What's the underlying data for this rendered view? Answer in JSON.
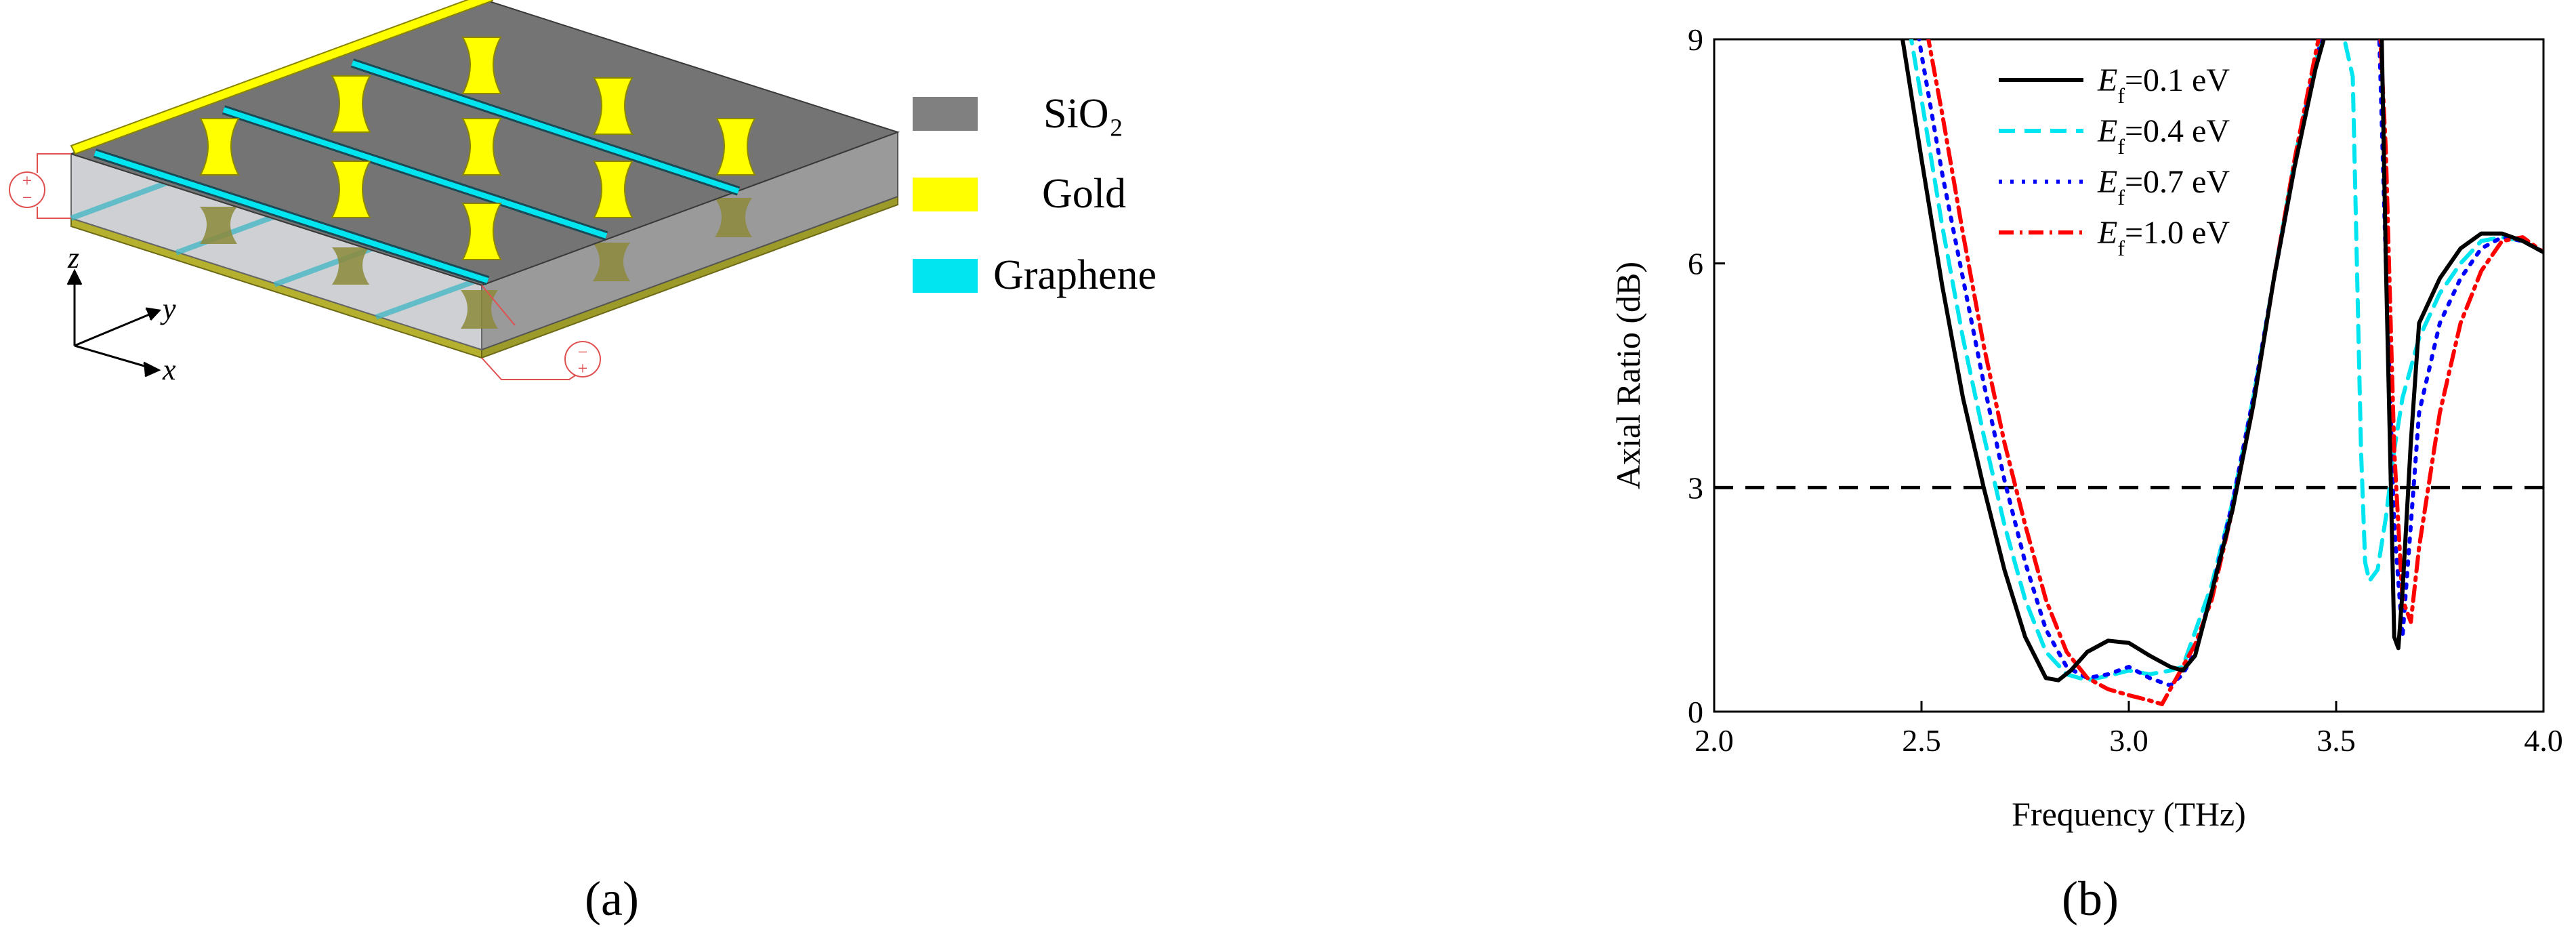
{
  "panel_a": {
    "caption": "(a)",
    "legend": [
      {
        "label": "SiO₂",
        "color": "#808080"
      },
      {
        "label": "Gold",
        "color": "#ffff00"
      },
      {
        "label": "Graphene",
        "color": "#00e5ef"
      }
    ],
    "axes": {
      "z": "z",
      "y": "y",
      "x": "x"
    },
    "source_marks": {
      "plus": "+",
      "minus": "−"
    }
  },
  "panel_b": {
    "caption": "(b)",
    "chart_data": {
      "type": "line",
      "xlabel": "Frequency (THz)",
      "ylabel": "Axial Ratio (dB)",
      "xlim": [
        2.0,
        4.0
      ],
      "ylim": [
        0,
        9
      ],
      "xticks": [
        "2.0",
        "2.5",
        "3.0",
        "3.5",
        "4.0"
      ],
      "yticks": [
        "0",
        "3",
        "6",
        "9"
      ],
      "grid": false,
      "legend_position": "top-right",
      "reference_line": {
        "y": 3,
        "style": "dashed",
        "color": "#000000"
      },
      "series": [
        {
          "name": "E_f=0.1 eV",
          "legend": {
            "sym": "E",
            "sub": "f",
            "rest": "=0.1 eV"
          },
          "color": "#000000",
          "dash": "",
          "x": [
            2.44,
            2.5,
            2.55,
            2.6,
            2.65,
            2.7,
            2.75,
            2.8,
            2.83,
            2.86,
            2.9,
            2.95,
            3.0,
            3.05,
            3.1,
            3.13,
            3.16,
            3.2,
            3.25,
            3.3,
            3.35,
            3.4,
            3.45,
            3.48,
            3.5,
            3.52,
            3.55,
            3.58,
            3.6,
            3.61,
            3.62,
            3.63,
            3.64,
            3.65,
            3.66,
            3.68,
            3.7,
            3.75,
            3.8,
            3.85,
            3.9,
            3.95,
            4.0
          ],
          "y": [
            9.5,
            7.4,
            5.7,
            4.2,
            3.0,
            1.9,
            1.0,
            0.45,
            0.42,
            0.55,
            0.8,
            0.95,
            0.92,
            0.75,
            0.6,
            0.55,
            0.75,
            1.6,
            2.7,
            4.1,
            5.8,
            7.3,
            8.6,
            9.2,
            9.6,
            9.8,
            9.8,
            9.8,
            9.8,
            9.0,
            6.0,
            3.5,
            1.0,
            0.85,
            1.6,
            3.6,
            5.2,
            5.8,
            6.2,
            6.4,
            6.4,
            6.3,
            6.15
          ]
        },
        {
          "name": "E_f=0.4 eV",
          "legend": {
            "sym": "E",
            "sub": "f",
            "rest": "=0.4 eV"
          },
          "color": "#00e5ef",
          "dash": "24,14",
          "x": [
            2.46,
            2.5,
            2.55,
            2.6,
            2.65,
            2.7,
            2.75,
            2.8,
            2.85,
            2.9,
            2.95,
            3.0,
            3.05,
            3.1,
            3.13,
            3.2,
            3.25,
            3.3,
            3.35,
            3.4,
            3.45,
            3.48,
            3.5,
            3.52,
            3.54,
            3.55,
            3.56,
            3.57,
            3.58,
            3.6,
            3.62,
            3.64,
            3.66,
            3.7,
            3.75,
            3.8,
            3.85,
            3.9,
            3.95,
            4.0
          ],
          "y": [
            9.5,
            8.2,
            6.5,
            5.0,
            3.7,
            2.5,
            1.5,
            0.8,
            0.5,
            0.42,
            0.48,
            0.55,
            0.5,
            0.55,
            0.6,
            1.7,
            2.8,
            4.2,
            5.8,
            7.4,
            8.7,
            9.3,
            9.3,
            9.0,
            8.5,
            6.0,
            3.5,
            2.0,
            1.75,
            1.9,
            2.6,
            3.5,
            4.2,
            5.0,
            5.6,
            6.0,
            6.3,
            6.35,
            6.3,
            6.15
          ]
        },
        {
          "name": "E_f=0.7 eV",
          "legend": {
            "sym": "E",
            "sub": "f",
            "rest": "=0.7 eV"
          },
          "color": "#0000ff",
          "dash": "5,12",
          "x": [
            2.48,
            2.5,
            2.55,
            2.6,
            2.65,
            2.7,
            2.75,
            2.8,
            2.85,
            2.9,
            2.95,
            3.0,
            3.05,
            3.1,
            3.13,
            3.16,
            3.2,
            3.25,
            3.3,
            3.35,
            3.4,
            3.45,
            3.48,
            3.5,
            3.52,
            3.56,
            3.6,
            3.62,
            3.64,
            3.66,
            3.68,
            3.7,
            3.75,
            3.8,
            3.85,
            3.9,
            3.95,
            4.0
          ],
          "y": [
            9.5,
            8.8,
            7.2,
            5.8,
            4.4,
            3.1,
            2.0,
            1.1,
            0.6,
            0.45,
            0.5,
            0.6,
            0.45,
            0.35,
            0.5,
            0.8,
            1.6,
            2.8,
            4.2,
            5.8,
            7.3,
            8.7,
            9.3,
            9.6,
            9.8,
            9.8,
            9.8,
            6.0,
            2.5,
            1.0,
            2.5,
            4.0,
            5.2,
            5.8,
            6.2,
            6.35,
            6.3,
            6.15
          ]
        },
        {
          "name": "E_f=1.0 eV",
          "legend": {
            "sym": "E",
            "sub": "f",
            "rest": "=1.0 eV"
          },
          "color": "#ff0000",
          "dash": "22,9,4,9",
          "x": [
            2.5,
            2.55,
            2.6,
            2.65,
            2.7,
            2.75,
            2.8,
            2.85,
            2.9,
            2.95,
            3.0,
            3.05,
            3.08,
            3.12,
            3.16,
            3.2,
            3.25,
            3.3,
            3.35,
            3.4,
            3.45,
            3.48,
            3.5,
            3.52,
            3.56,
            3.6,
            3.62,
            3.64,
            3.66,
            3.68,
            3.7,
            3.75,
            3.8,
            3.85,
            3.9,
            3.95,
            4.0
          ],
          "y": [
            9.5,
            8.0,
            6.4,
            4.9,
            3.6,
            2.5,
            1.5,
            0.8,
            0.45,
            0.3,
            0.22,
            0.15,
            0.1,
            0.5,
            0.9,
            1.5,
            2.7,
            4.1,
            5.8,
            7.4,
            8.8,
            9.6,
            9.8,
            9.8,
            9.8,
            9.8,
            7.5,
            3.5,
            1.5,
            1.2,
            2.2,
            4.0,
            5.2,
            5.9,
            6.3,
            6.35,
            6.15
          ]
        }
      ]
    }
  }
}
